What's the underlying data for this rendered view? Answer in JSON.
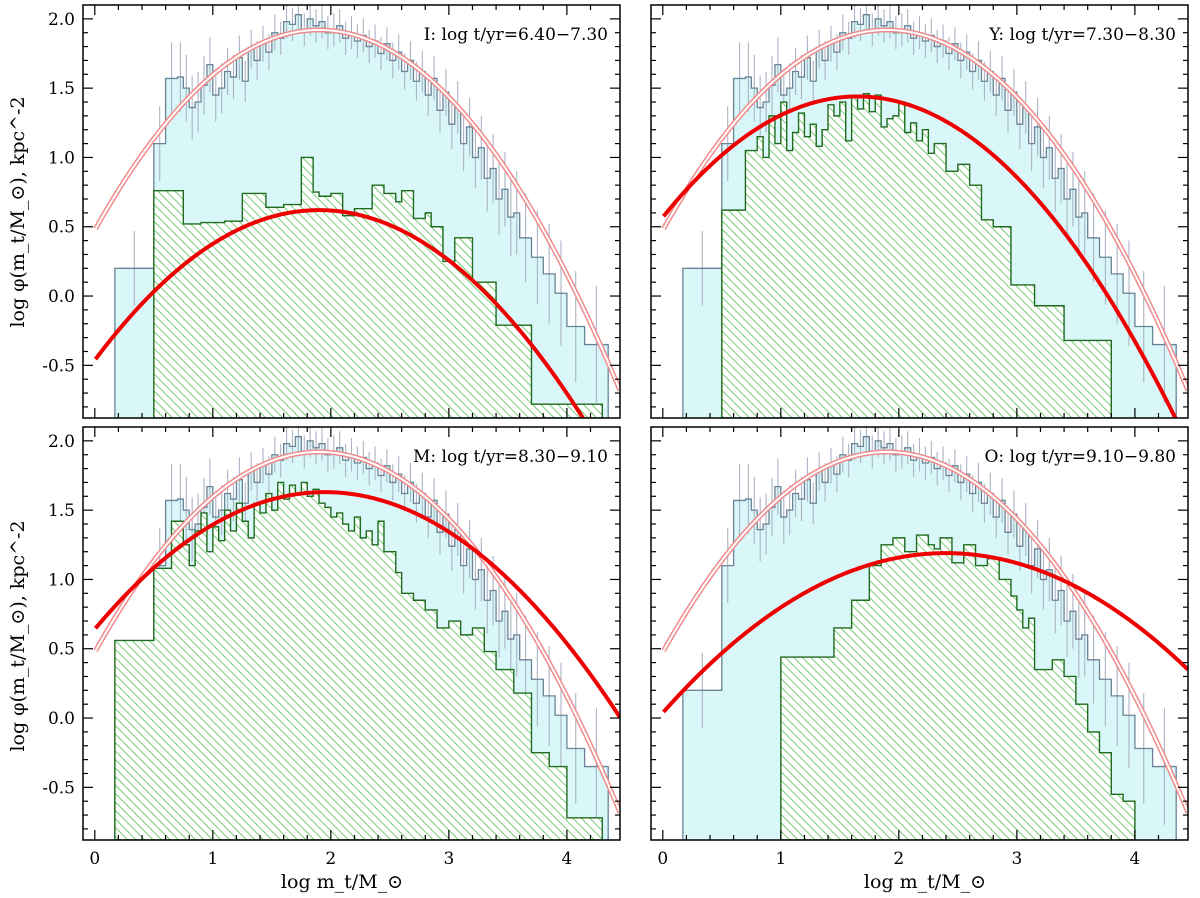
{
  "chart_data": {
    "type": "histogram-panels",
    "xlabel": "log m_t/M_⊙",
    "ylabel": "log φ(m_t/M_⊙), kpc^-2",
    "xlim": [
      -0.1,
      4.45
    ],
    "ylim": [
      -0.88,
      2.1
    ],
    "xticks": [
      "0",
      "1",
      "2",
      "3",
      "4"
    ],
    "xtick_values": [
      0,
      1,
      2,
      3,
      4
    ],
    "yticks": [
      "-0.5",
      "0.0",
      "0.5",
      "1.0",
      "1.5",
      "2.0"
    ],
    "ytick_values": [
      -0.5,
      0.0,
      0.5,
      1.0,
      1.5,
      2.0
    ],
    "colors": {
      "total_fill": "#d9f7f9",
      "total_line": "#6b8396",
      "errbar": "#aab3c4",
      "sub_fill": "#5ec45e",
      "sub_line": "#1f6b1f",
      "fit_red": "#ee0000",
      "total_fit": "#f08b8b"
    },
    "total_hist": {
      "edges": [
        0.17,
        0.5,
        0.6,
        0.7,
        0.75,
        0.8,
        0.85,
        0.9,
        0.95,
        1.0,
        1.05,
        1.1,
        1.15,
        1.2,
        1.25,
        1.3,
        1.35,
        1.4,
        1.45,
        1.5,
        1.55,
        1.6,
        1.65,
        1.7,
        1.75,
        1.8,
        1.85,
        1.9,
        1.95,
        2.0,
        2.05,
        2.1,
        2.15,
        2.2,
        2.25,
        2.3,
        2.35,
        2.4,
        2.45,
        2.5,
        2.55,
        2.6,
        2.65,
        2.7,
        2.75,
        2.8,
        2.85,
        2.9,
        2.95,
        3.0,
        3.05,
        3.1,
        3.15,
        3.2,
        3.25,
        3.3,
        3.35,
        3.4,
        3.45,
        3.5,
        3.55,
        3.6,
        3.7,
        3.8,
        3.9,
        4.0,
        4.15,
        4.35
      ],
      "values": [
        0.2,
        1.1,
        1.57,
        1.58,
        1.5,
        1.36,
        1.4,
        1.52,
        1.67,
        1.45,
        1.5,
        1.62,
        1.58,
        1.72,
        1.55,
        1.78,
        1.7,
        1.82,
        1.76,
        1.9,
        1.86,
        1.98,
        1.96,
        2.03,
        1.92,
        2.0,
        1.95,
        1.98,
        1.9,
        1.92,
        1.95,
        1.86,
        1.9,
        1.84,
        1.88,
        1.8,
        1.84,
        1.75,
        1.82,
        1.7,
        1.76,
        1.62,
        1.7,
        1.55,
        1.62,
        1.45,
        1.57,
        1.34,
        1.47,
        1.24,
        1.36,
        1.1,
        1.22,
        1.0,
        1.07,
        0.85,
        0.92,
        0.7,
        0.77,
        0.57,
        0.6,
        0.42,
        0.28,
        0.16,
        0.02,
        -0.22,
        -0.35
      ],
      "errors": [
        0.27,
        0.27,
        0.26,
        0.25,
        0.24,
        0.23,
        0.22,
        0.21,
        0.2,
        0.19,
        0.18,
        0.17,
        0.16,
        0.16,
        0.15,
        0.14,
        0.14,
        0.13,
        0.13,
        0.13,
        0.12,
        0.12,
        0.12,
        0.12,
        0.12,
        0.12,
        0.12,
        0.12,
        0.12,
        0.12,
        0.12,
        0.12,
        0.12,
        0.12,
        0.12,
        0.12,
        0.12,
        0.12,
        0.12,
        0.13,
        0.13,
        0.13,
        0.14,
        0.14,
        0.15,
        0.15,
        0.16,
        0.16,
        0.17,
        0.18,
        0.19,
        0.2,
        0.21,
        0.22,
        0.23,
        0.24,
        0.25,
        0.26,
        0.27,
        0.28,
        0.3,
        0.32,
        0.34,
        0.36,
        0.38,
        0.4,
        0.42
      ]
    },
    "total_fit": {
      "a": 1.92,
      "mu": 1.9,
      "b": 0.4
    },
    "panels": [
      {
        "label": "I: log t/yr=6.40−7.30",
        "fit": {
          "a": 0.62,
          "mu": 1.9,
          "b": 0.3
        },
        "sub_hist": {
          "edges": [
            0.5,
            0.75,
            0.9,
            1.1,
            1.25,
            1.45,
            1.6,
            1.75,
            1.85,
            1.9,
            2.0,
            2.1,
            2.2,
            2.35,
            2.45,
            2.55,
            2.6,
            2.7,
            2.8,
            2.85,
            2.95,
            3.05,
            3.2,
            3.4,
            3.7,
            4.3
          ],
          "values": [
            0.76,
            0.52,
            0.53,
            0.54,
            0.74,
            0.64,
            0.66,
            1.0,
            0.75,
            0.72,
            0.74,
            0.58,
            0.63,
            0.8,
            0.74,
            0.68,
            0.76,
            0.56,
            0.6,
            0.5,
            0.25,
            0.42,
            0.1,
            -0.21,
            -0.78
          ]
        }
      },
      {
        "label": "Y: log t/yr=7.30−8.30",
        "fit": {
          "a": 1.44,
          "mu": 1.65,
          "b": 0.32
        },
        "sub_hist": {
          "edges": [
            0.5,
            0.7,
            0.8,
            0.85,
            0.9,
            0.95,
            1.0,
            1.05,
            1.1,
            1.15,
            1.2,
            1.25,
            1.3,
            1.35,
            1.4,
            1.45,
            1.5,
            1.55,
            1.6,
            1.65,
            1.7,
            1.75,
            1.8,
            1.85,
            1.9,
            1.95,
            2.0,
            2.05,
            2.1,
            2.15,
            2.2,
            2.25,
            2.3,
            2.4,
            2.5,
            2.6,
            2.7,
            2.8,
            2.95,
            3.15,
            3.4,
            3.8
          ],
          "values": [
            0.62,
            1.05,
            1.15,
            1.0,
            1.3,
            1.1,
            1.4,
            1.05,
            1.18,
            1.32,
            1.15,
            1.24,
            1.08,
            1.2,
            1.38,
            1.3,
            1.4,
            1.12,
            1.44,
            1.35,
            1.46,
            1.33,
            1.45,
            1.22,
            1.28,
            1.3,
            1.4,
            1.18,
            1.25,
            1.12,
            1.2,
            1.03,
            1.1,
            0.9,
            0.95,
            0.8,
            0.55,
            0.5,
            0.08,
            -0.07,
            -0.32
          ]
        }
      },
      {
        "label": "M: log t/yr=8.30−9.10",
        "fit": {
          "a": 1.63,
          "mu": 1.95,
          "b": 0.26
        },
        "sub_hist": {
          "edges": [
            0.17,
            0.5,
            0.65,
            0.75,
            0.8,
            0.85,
            0.9,
            0.95,
            1.0,
            1.05,
            1.1,
            1.15,
            1.2,
            1.25,
            1.3,
            1.35,
            1.4,
            1.45,
            1.5,
            1.55,
            1.6,
            1.65,
            1.7,
            1.75,
            1.8,
            1.85,
            1.9,
            1.95,
            2.0,
            2.05,
            2.1,
            2.15,
            2.2,
            2.25,
            2.3,
            2.35,
            2.4,
            2.45,
            2.5,
            2.55,
            2.6,
            2.7,
            2.8,
            2.9,
            3.0,
            3.1,
            3.2,
            3.3,
            3.4,
            3.55,
            3.7,
            3.85,
            4.0,
            4.3
          ],
          "values": [
            0.56,
            1.08,
            1.42,
            1.25,
            1.1,
            1.35,
            1.48,
            1.2,
            1.38,
            1.28,
            1.5,
            1.35,
            1.55,
            1.42,
            1.3,
            1.55,
            1.48,
            1.62,
            1.5,
            1.7,
            1.58,
            1.68,
            1.62,
            1.7,
            1.6,
            1.65,
            1.55,
            1.52,
            1.45,
            1.48,
            1.4,
            1.35,
            1.45,
            1.3,
            1.35,
            1.25,
            1.42,
            1.2,
            1.2,
            1.05,
            0.9,
            0.85,
            0.78,
            0.65,
            0.7,
            0.6,
            0.65,
            0.48,
            0.35,
            0.18,
            -0.25,
            -0.35,
            -0.72
          ]
        }
      },
      {
        "label": "O: log t/yr=9.10−9.80",
        "fit": {
          "a": 1.19,
          "mu": 2.4,
          "b": 0.2
        },
        "sub_hist": {
          "edges": [
            1.0,
            1.45,
            1.6,
            1.75,
            1.85,
            1.95,
            2.05,
            2.15,
            2.25,
            2.3,
            2.35,
            2.45,
            2.55,
            2.65,
            2.75,
            2.85,
            2.95,
            3.0,
            3.05,
            3.1,
            3.15,
            3.3,
            3.4,
            3.5,
            3.6,
            3.7,
            3.8,
            3.9,
            4.0
          ],
          "values": [
            0.44,
            0.65,
            0.85,
            1.1,
            1.25,
            1.3,
            1.2,
            1.32,
            1.25,
            1.22,
            1.3,
            1.12,
            1.25,
            1.1,
            1.15,
            1.0,
            0.88,
            0.78,
            0.65,
            0.72,
            0.35,
            0.42,
            0.3,
            0.1,
            -0.1,
            -0.25,
            -0.55,
            -0.6
          ]
        }
      }
    ]
  }
}
